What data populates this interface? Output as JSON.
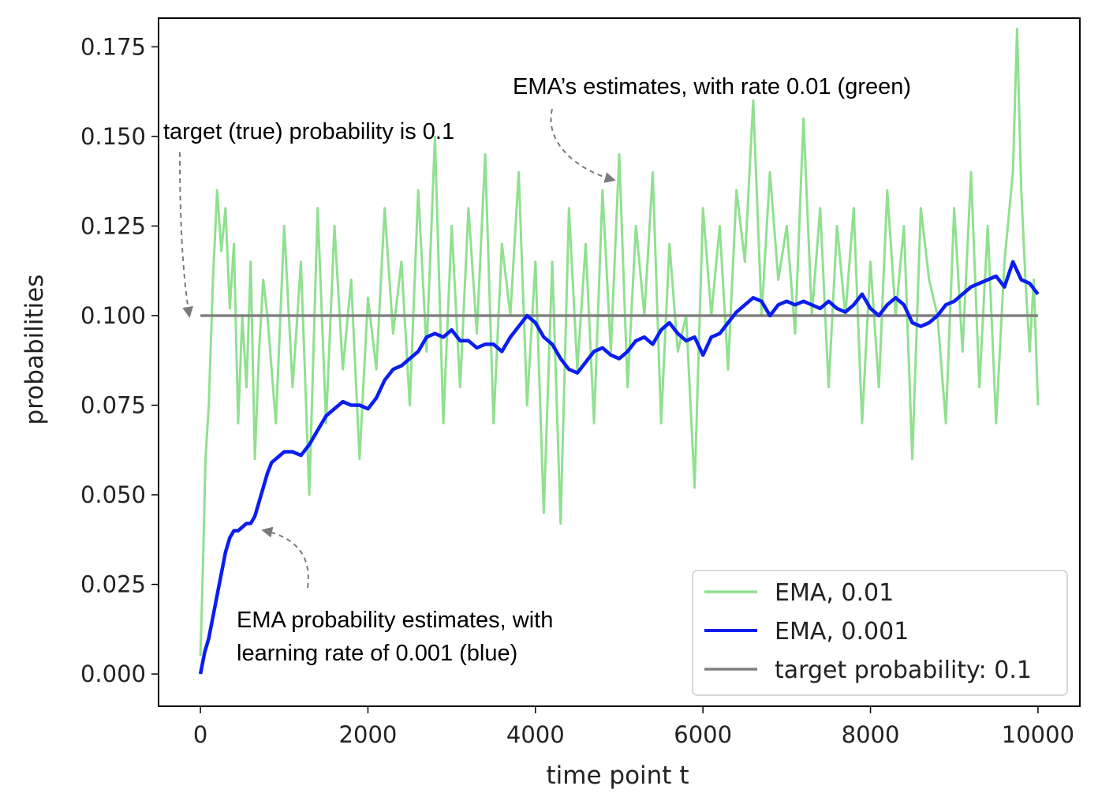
{
  "chart_data": {
    "type": "line",
    "title": "",
    "xlabel": "time point t",
    "ylabel": "probabilities",
    "xlim": [
      -500,
      10500
    ],
    "ylim": [
      -0.009,
      0.183
    ],
    "xticks": [
      0,
      2000,
      4000,
      6000,
      8000,
      10000
    ],
    "xtick_labels": [
      "0",
      "2000",
      "4000",
      "6000",
      "8000",
      "10000"
    ],
    "yticks": [
      0.0,
      0.025,
      0.05,
      0.075,
      0.1,
      0.125,
      0.15,
      0.175
    ],
    "ytick_labels": [
      "0.000",
      "0.025",
      "0.050",
      "0.075",
      "0.100",
      "0.125",
      "0.150",
      "0.175"
    ],
    "grid": false,
    "legend_position": "lower-right",
    "series": [
      {
        "name": "EMA, 0.01",
        "color": "#90e090",
        "x": [
          0,
          30,
          60,
          100,
          150,
          200,
          250,
          300,
          350,
          400,
          450,
          500,
          550,
          600,
          650,
          700,
          750,
          800,
          900,
          1000,
          1100,
          1200,
          1300,
          1400,
          1500,
          1600,
          1700,
          1800,
          1900,
          2000,
          2100,
          2200,
          2300,
          2400,
          2500,
          2600,
          2700,
          2800,
          2900,
          3000,
          3100,
          3200,
          3300,
          3400,
          3500,
          3600,
          3700,
          3800,
          3900,
          4000,
          4100,
          4200,
          4300,
          4400,
          4500,
          4600,
          4700,
          4800,
          4900,
          5000,
          5100,
          5200,
          5300,
          5400,
          5500,
          5600,
          5700,
          5800,
          5900,
          6000,
          6100,
          6200,
          6300,
          6400,
          6500,
          6600,
          6700,
          6800,
          6900,
          7000,
          7100,
          7200,
          7300,
          7400,
          7500,
          7600,
          7700,
          7800,
          7900,
          8000,
          8100,
          8200,
          8300,
          8400,
          8500,
          8600,
          8700,
          8800,
          8900,
          9000,
          9100,
          9200,
          9300,
          9400,
          9500,
          9600,
          9700,
          9750,
          9800,
          9850,
          9900,
          9950,
          10000
        ],
        "y": [
          0.005,
          0.03,
          0.06,
          0.075,
          0.11,
          0.135,
          0.118,
          0.13,
          0.102,
          0.12,
          0.07,
          0.1,
          0.08,
          0.115,
          0.06,
          0.09,
          0.11,
          0.1,
          0.07,
          0.125,
          0.08,
          0.115,
          0.05,
          0.13,
          0.07,
          0.125,
          0.085,
          0.11,
          0.06,
          0.105,
          0.085,
          0.13,
          0.095,
          0.115,
          0.075,
          0.135,
          0.09,
          0.15,
          0.07,
          0.125,
          0.08,
          0.13,
          0.095,
          0.145,
          0.07,
          0.12,
          0.1,
          0.14,
          0.075,
          0.115,
          0.045,
          0.115,
          0.042,
          0.13,
          0.085,
          0.12,
          0.07,
          0.135,
          0.09,
          0.145,
          0.08,
          0.125,
          0.1,
          0.14,
          0.07,
          0.12,
          0.09,
          0.1,
          0.052,
          0.13,
          0.1,
          0.125,
          0.085,
          0.135,
          0.115,
          0.16,
          0.1,
          0.14,
          0.11,
          0.125,
          0.095,
          0.155,
          0.1,
          0.13,
          0.08,
          0.125,
          0.1,
          0.13,
          0.07,
          0.115,
          0.08,
          0.135,
          0.1,
          0.125,
          0.06,
          0.13,
          0.11,
          0.1,
          0.07,
          0.13,
          0.09,
          0.14,
          0.08,
          0.125,
          0.07,
          0.115,
          0.14,
          0.18,
          0.135,
          0.11,
          0.09,
          0.11,
          0.075
        ]
      },
      {
        "name": "EMA, 0.001",
        "color": "#0a1ef0",
        "x": [
          0,
          50,
          100,
          150,
          200,
          250,
          300,
          350,
          400,
          450,
          500,
          550,
          600,
          650,
          700,
          750,
          800,
          850,
          900,
          1000,
          1100,
          1200,
          1300,
          1400,
          1500,
          1600,
          1700,
          1800,
          1900,
          2000,
          2100,
          2200,
          2300,
          2400,
          2500,
          2600,
          2700,
          2800,
          2900,
          3000,
          3100,
          3200,
          3300,
          3400,
          3500,
          3600,
          3700,
          3800,
          3900,
          4000,
          4100,
          4200,
          4300,
          4400,
          4500,
          4600,
          4700,
          4800,
          4900,
          5000,
          5100,
          5200,
          5300,
          5400,
          5500,
          5600,
          5700,
          5800,
          5900,
          6000,
          6100,
          6200,
          6300,
          6400,
          6500,
          6600,
          6700,
          6800,
          6900,
          7000,
          7100,
          7200,
          7300,
          7400,
          7500,
          7600,
          7700,
          7800,
          7900,
          8000,
          8100,
          8200,
          8300,
          8400,
          8500,
          8600,
          8700,
          8800,
          8900,
          9000,
          9100,
          9200,
          9300,
          9400,
          9500,
          9600,
          9700,
          9800,
          9900,
          10000
        ],
        "y": [
          0.0,
          0.006,
          0.01,
          0.016,
          0.022,
          0.028,
          0.034,
          0.038,
          0.04,
          0.04,
          0.041,
          0.042,
          0.042,
          0.044,
          0.048,
          0.052,
          0.056,
          0.059,
          0.06,
          0.062,
          0.062,
          0.061,
          0.064,
          0.068,
          0.072,
          0.074,
          0.076,
          0.075,
          0.075,
          0.074,
          0.077,
          0.082,
          0.085,
          0.086,
          0.088,
          0.09,
          0.094,
          0.095,
          0.094,
          0.096,
          0.093,
          0.093,
          0.091,
          0.092,
          0.092,
          0.09,
          0.094,
          0.097,
          0.1,
          0.098,
          0.094,
          0.092,
          0.088,
          0.085,
          0.084,
          0.087,
          0.09,
          0.091,
          0.089,
          0.088,
          0.09,
          0.093,
          0.094,
          0.092,
          0.096,
          0.098,
          0.095,
          0.093,
          0.094,
          0.089,
          0.094,
          0.095,
          0.098,
          0.101,
          0.103,
          0.105,
          0.104,
          0.1,
          0.103,
          0.104,
          0.103,
          0.104,
          0.103,
          0.102,
          0.104,
          0.102,
          0.101,
          0.103,
          0.106,
          0.102,
          0.1,
          0.103,
          0.105,
          0.103,
          0.098,
          0.097,
          0.098,
          0.1,
          0.103,
          0.104,
          0.106,
          0.108,
          0.109,
          0.11,
          0.111,
          0.108,
          0.115,
          0.11,
          0.109,
          0.106
        ]
      },
      {
        "name": "target probability: 0.1",
        "color": "#808080",
        "x": [
          0,
          10000
        ],
        "y": [
          0.1,
          0.1
        ]
      }
    ],
    "annotations": [
      {
        "text": "target (true) probability is 0.1"
      },
      {
        "text": "EMA’s estimates, with rate 0.01 (green)"
      },
      {
        "text": "EMA probability estimates, with"
      },
      {
        "text": "learning rate of 0.001 (blue)"
      }
    ]
  }
}
